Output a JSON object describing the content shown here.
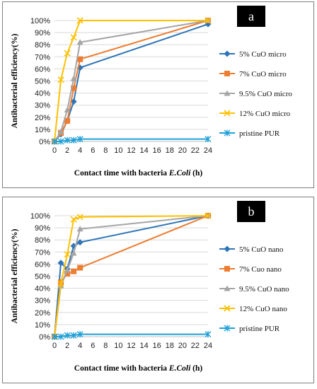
{
  "chart_data": [
    {
      "type": "line",
      "panel_label": "a",
      "xlabel_prefix": "Contact time with bacteria ",
      "xlabel_italic": "E.Coli",
      "xlabel_suffix": " (h)",
      "ylabel": "Antibacterial efficiency(%)",
      "xlim": [
        0,
        24
      ],
      "ylim": [
        0,
        100
      ],
      "x_ticks": [
        0,
        2,
        4,
        6,
        8,
        10,
        12,
        14,
        16,
        18,
        20,
        22,
        24
      ],
      "y_ticks": [
        "0%",
        "10%",
        "20%",
        "30%",
        "40%",
        "50%",
        "60%",
        "70%",
        "80%",
        "90%",
        "100%"
      ],
      "legend_position": "right",
      "series": [
        {
          "name": "5% CuO micro",
          "color": "#2e75b6",
          "marker": "diamond",
          "x": [
            0,
            1,
            2,
            3,
            4,
            24
          ],
          "y": [
            0,
            6,
            17,
            33,
            61,
            97
          ]
        },
        {
          "name": "7% CuO micro",
          "color": "#ed7d31",
          "marker": "square",
          "x": [
            0,
            1,
            2,
            3,
            4,
            24
          ],
          "y": [
            0,
            7,
            17,
            44,
            68,
            100
          ]
        },
        {
          "name": "9.5% CuO micro",
          "color": "#a5a5a5",
          "marker": "triangle",
          "x": [
            0,
            1,
            2,
            3,
            4,
            24
          ],
          "y": [
            0,
            8,
            26,
            52,
            82,
            100
          ]
        },
        {
          "name": "12% CuO micro",
          "color": "#ffc000",
          "marker": "x",
          "x": [
            0,
            1,
            2,
            3,
            4,
            24
          ],
          "y": [
            0,
            51,
            73,
            86,
            100,
            100
          ]
        },
        {
          "name": "pristine PUR",
          "color": "#1fa0d8",
          "marker": "star",
          "x": [
            0,
            1,
            2,
            3,
            4,
            24
          ],
          "y": [
            0,
            0,
            1,
            1,
            2,
            2
          ]
        }
      ]
    },
    {
      "type": "line",
      "panel_label": "b",
      "xlabel_prefix": "Contact time with bacteria ",
      "xlabel_italic": "E.Coli",
      "xlabel_suffix": " (h)",
      "ylabel": "Antibacterial efficiency(%)",
      "xlim": [
        0,
        24
      ],
      "ylim": [
        0,
        100
      ],
      "x_ticks": [
        0,
        2,
        4,
        6,
        8,
        10,
        12,
        14,
        16,
        18,
        20,
        22,
        24
      ],
      "y_ticks": [
        "0%",
        "10%",
        "20%",
        "30%",
        "40%",
        "50%",
        "60%",
        "70%",
        "80%",
        "90%",
        "100%"
      ],
      "legend_position": "right",
      "series": [
        {
          "name": "5% CuO nano",
          "color": "#2e75b6",
          "marker": "diamond",
          "x": [
            0,
            1,
            2,
            3,
            4,
            24
          ],
          "y": [
            0,
            61,
            56,
            75,
            78,
            100
          ]
        },
        {
          "name": "7% Cuo nano",
          "color": "#ed7d31",
          "marker": "square",
          "x": [
            0,
            1,
            2,
            3,
            4,
            24
          ],
          "y": [
            0,
            45,
            52,
            54,
            57,
            100
          ]
        },
        {
          "name": "9.5% CuO nano",
          "color": "#a5a5a5",
          "marker": "triangle",
          "x": [
            0,
            1,
            2,
            3,
            4,
            24
          ],
          "y": [
            0,
            42,
            55,
            69,
            89,
            100
          ]
        },
        {
          "name": "12% CuO nano",
          "color": "#ffc000",
          "marker": "x",
          "x": [
            0,
            1,
            2,
            3,
            4,
            24
          ],
          "y": [
            0,
            44,
            68,
            97,
            99,
            100
          ]
        },
        {
          "name": "pristine PUR",
          "color": "#1fa0d8",
          "marker": "star",
          "x": [
            0,
            1,
            2,
            3,
            4,
            24
          ],
          "y": [
            0,
            0,
            1,
            1,
            2,
            2
          ]
        }
      ]
    }
  ]
}
